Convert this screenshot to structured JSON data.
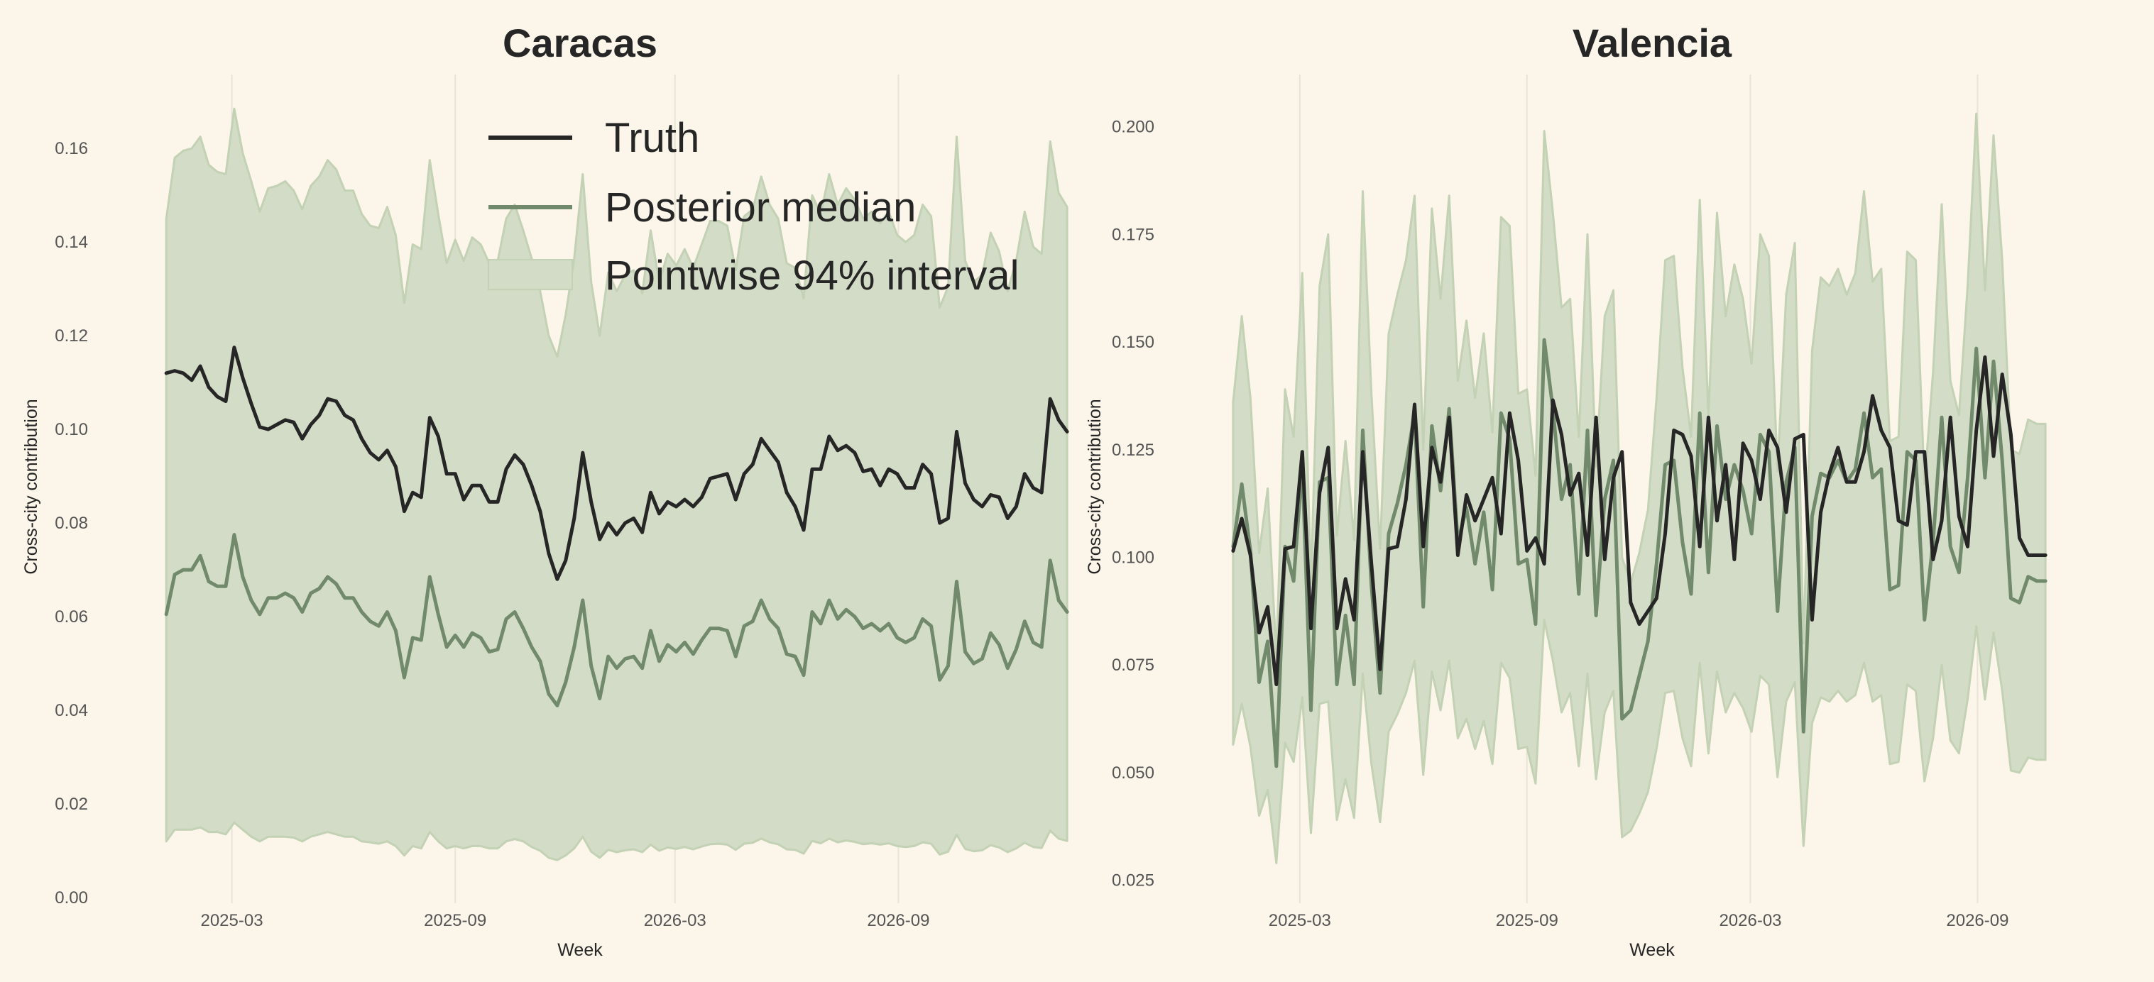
{
  "colors": {
    "background": "#fcf5ea",
    "truth": "#262626",
    "median": "#718a6b",
    "interval_fill": "#d3dcc6",
    "interval_edge": "#c3d1b4",
    "grid": "#e7e4d6"
  },
  "legend": {
    "placement": "upper-center of left panel",
    "items": [
      {
        "key": "truth",
        "label": "Truth",
        "kind": "line"
      },
      {
        "key": "median",
        "label": "Posterior median",
        "kind": "line"
      },
      {
        "key": "interval",
        "label": "Pointwise 94% interval",
        "kind": "patch"
      }
    ]
  },
  "chart_data": [
    {
      "type": "line",
      "title": "Caracas",
      "xlabel": "Week",
      "ylabel": "Cross-city contribution",
      "xlim": [
        "2024-12-10",
        "2026-12-15"
      ],
      "ylim": [
        0,
        0.172
      ],
      "yticks": [
        0.0,
        0.02,
        0.04,
        0.06,
        0.08,
        0.1,
        0.12,
        0.14,
        0.16
      ],
      "ytick_labels": [
        "0.00",
        "0.02",
        "0.04",
        "0.06",
        "0.08",
        "0.10",
        "0.12",
        "0.14",
        "0.16"
      ],
      "xticks": [
        "2025-03-01",
        "2025-09-01",
        "2026-03-01",
        "2026-09-01"
      ],
      "xtick_labels": [
        "2025-03",
        "2025-09",
        "2026-03",
        "2026-09"
      ],
      "grid": "vertical",
      "x_start": "2025-01-06",
      "x_step_days": 7,
      "series": [
        {
          "name": "Truth",
          "values": [
            0.112,
            0.1125,
            0.112,
            0.1105,
            0.1135,
            0.109,
            0.107,
            0.106,
            0.1175,
            0.111,
            0.1055,
            0.1005,
            0.1,
            0.101,
            0.102,
            0.1015,
            0.098,
            0.101,
            0.103,
            0.1065,
            0.106,
            0.103,
            0.102,
            0.098,
            0.095,
            0.0935,
            0.0955,
            0.092,
            0.0825,
            0.0865,
            0.0855,
            0.1025,
            0.0985,
            0.0905,
            0.0905,
            0.085,
            0.088,
            0.088,
            0.0845,
            0.0845,
            0.0915,
            0.0945,
            0.0925,
            0.088,
            0.0825,
            0.0735,
            0.068,
            0.072,
            0.081,
            0.095,
            0.0845,
            0.0765,
            0.08,
            0.0775,
            0.08,
            0.081,
            0.078,
            0.0865,
            0.082,
            0.0845,
            0.0835,
            0.085,
            0.0835,
            0.0855,
            0.0895,
            0.09,
            0.0905,
            0.085,
            0.0905,
            0.0925,
            0.098,
            0.0955,
            0.093,
            0.0865,
            0.0835,
            0.0785,
            0.0915,
            0.0915,
            0.0985,
            0.0955,
            0.0965,
            0.095,
            0.091,
            0.0915,
            0.088,
            0.0915,
            0.0905,
            0.0875,
            0.0875,
            0.0925,
            0.0905,
            0.08,
            0.081,
            0.0995,
            0.0885,
            0.085,
            0.0835,
            0.086,
            0.0855,
            0.081,
            0.0835,
            0.0905,
            0.0875,
            0.0865,
            0.1065,
            0.102,
            0.0995
          ]
        },
        {
          "name": "Posterior median",
          "values": [
            0.0605,
            0.069,
            0.07,
            0.07,
            0.073,
            0.0675,
            0.0665,
            0.0665,
            0.0775,
            0.0685,
            0.0635,
            0.0605,
            0.064,
            0.064,
            0.065,
            0.064,
            0.061,
            0.065,
            0.066,
            0.0685,
            0.067,
            0.064,
            0.064,
            0.061,
            0.059,
            0.058,
            0.061,
            0.057,
            0.047,
            0.0555,
            0.055,
            0.0685,
            0.0605,
            0.0535,
            0.056,
            0.0535,
            0.0565,
            0.0555,
            0.0525,
            0.053,
            0.0595,
            0.061,
            0.0575,
            0.0535,
            0.0505,
            0.0435,
            0.041,
            0.046,
            0.0535,
            0.0635,
            0.0495,
            0.0425,
            0.0515,
            0.049,
            0.051,
            0.0515,
            0.049,
            0.057,
            0.0505,
            0.054,
            0.0525,
            0.0545,
            0.052,
            0.055,
            0.0575,
            0.0575,
            0.057,
            0.0515,
            0.058,
            0.059,
            0.0635,
            0.0595,
            0.0575,
            0.052,
            0.0515,
            0.0475,
            0.061,
            0.0585,
            0.0635,
            0.0595,
            0.0615,
            0.06,
            0.0575,
            0.0585,
            0.057,
            0.0585,
            0.0555,
            0.0545,
            0.0555,
            0.0595,
            0.058,
            0.0465,
            0.0495,
            0.0675,
            0.0525,
            0.05,
            0.051,
            0.0565,
            0.054,
            0.049,
            0.053,
            0.059,
            0.0545,
            0.0535,
            0.072,
            0.0635,
            0.061
          ]
        }
      ],
      "interval": {
        "lower": [
          0.012,
          0.0145,
          0.0145,
          0.0145,
          0.015,
          0.014,
          0.014,
          0.0135,
          0.016,
          0.0145,
          0.013,
          0.012,
          0.013,
          0.013,
          0.013,
          0.0128,
          0.012,
          0.013,
          0.0135,
          0.014,
          0.0135,
          0.013,
          0.013,
          0.012,
          0.0118,
          0.0115,
          0.012,
          0.011,
          0.009,
          0.011,
          0.0105,
          0.014,
          0.012,
          0.0105,
          0.011,
          0.0105,
          0.011,
          0.011,
          0.0105,
          0.0105,
          0.012,
          0.0125,
          0.012,
          0.0108,
          0.01,
          0.0085,
          0.008,
          0.009,
          0.0105,
          0.013,
          0.0098,
          0.0085,
          0.0102,
          0.0097,
          0.0101,
          0.0103,
          0.0097,
          0.0113,
          0.01,
          0.0107,
          0.0104,
          0.0108,
          0.0103,
          0.0109,
          0.0114,
          0.0115,
          0.0113,
          0.0102,
          0.0115,
          0.0117,
          0.0126,
          0.0118,
          0.0114,
          0.0103,
          0.0102,
          0.0094,
          0.0121,
          0.0116,
          0.0126,
          0.0118,
          0.0122,
          0.0119,
          0.0114,
          0.0116,
          0.0113,
          0.0116,
          0.011,
          0.0108,
          0.011,
          0.0118,
          0.0115,
          0.0092,
          0.0098,
          0.0134,
          0.0104,
          0.0099,
          0.0101,
          0.0112,
          0.0107,
          0.0097,
          0.0105,
          0.0117,
          0.0108,
          0.0106,
          0.0143,
          0.0126,
          0.0121
        ],
        "upper": [
          0.145,
          0.158,
          0.1595,
          0.16,
          0.1625,
          0.1565,
          0.155,
          0.1545,
          0.1685,
          0.159,
          0.153,
          0.1465,
          0.1515,
          0.152,
          0.153,
          0.151,
          0.147,
          0.152,
          0.154,
          0.1575,
          0.1555,
          0.151,
          0.151,
          0.146,
          0.1435,
          0.143,
          0.1475,
          0.1415,
          0.127,
          0.1395,
          0.1385,
          0.1575,
          0.146,
          0.1355,
          0.1405,
          0.136,
          0.141,
          0.1395,
          0.1355,
          0.136,
          0.145,
          0.148,
          0.1425,
          0.1365,
          0.1295,
          0.12,
          0.1155,
          0.1245,
          0.1365,
          0.1545,
          0.1315,
          0.12,
          0.1335,
          0.1295,
          0.133,
          0.134,
          0.129,
          0.1425,
          0.1315,
          0.1375,
          0.135,
          0.1385,
          0.1345,
          0.1395,
          0.1445,
          0.1445,
          0.1435,
          0.134,
          0.1455,
          0.147,
          0.154,
          0.148,
          0.145,
          0.1355,
          0.1345,
          0.128,
          0.15,
          0.146,
          0.1545,
          0.148,
          0.1515,
          0.149,
          0.145,
          0.1465,
          0.144,
          0.1465,
          0.1415,
          0.14,
          0.1415,
          0.148,
          0.1455,
          0.126,
          0.1305,
          0.1625,
          0.136,
          0.1315,
          0.133,
          0.142,
          0.138,
          0.1295,
          0.136,
          0.1465,
          0.139,
          0.1375,
          0.1615,
          0.1505,
          0.1475
        ]
      }
    },
    {
      "type": "line",
      "title": "Valencia",
      "xlabel": "Week",
      "ylabel": "Cross-city contribution",
      "xlim": [
        "2024-12-10",
        "2026-12-15"
      ],
      "ylim": [
        0.021,
        0.208
      ],
      "yticks": [
        0.025,
        0.05,
        0.075,
        0.1,
        0.125,
        0.15,
        0.175,
        0.2
      ],
      "ytick_labels": [
        "0.025",
        "0.050",
        "0.075",
        "0.100",
        "0.125",
        "0.150",
        "0.175",
        "0.200"
      ],
      "xticks": [
        "2025-03-01",
        "2025-09-01",
        "2026-03-01",
        "2026-09-01"
      ],
      "xtick_labels": [
        "2025-03",
        "2025-09",
        "2026-03",
        "2026-09"
      ],
      "grid": "vertical",
      "x_start": "2025-01-06",
      "x_step_days": 7,
      "series": [
        {
          "name": "Truth",
          "values": [
            0.1015,
            0.109,
            0.1005,
            0.0825,
            0.0885,
            0.0705,
            0.102,
            0.1025,
            0.1245,
            0.0835,
            0.115,
            0.1255,
            0.0835,
            0.095,
            0.0855,
            0.1245,
            0.0985,
            0.074,
            0.102,
            0.1025,
            0.1135,
            0.1355,
            0.1025,
            0.1255,
            0.1175,
            0.1325,
            0.1005,
            0.1145,
            0.1085,
            0.1135,
            0.1185,
            0.1055,
            0.1335,
            0.1225,
            0.1015,
            0.1045,
            0.0985,
            0.1365,
            0.1285,
            0.1145,
            0.1195,
            0.1005,
            0.1325,
            0.0995,
            0.1185,
            0.1245,
            0.0895,
            0.0845,
            0.0875,
            0.0905,
            0.1055,
            0.1295,
            0.1285,
            0.1235,
            0.1025,
            0.1325,
            0.1085,
            0.1215,
            0.0995,
            0.1265,
            0.1225,
            0.1135,
            0.1295,
            0.1255,
            0.1105,
            0.1275,
            0.1285,
            0.0855,
            0.1105,
            0.1195,
            0.1255,
            0.1175,
            0.1175,
            0.1245,
            0.1375,
            0.1295,
            0.1255,
            0.1085,
            0.1075,
            0.1245,
            0.1245,
            0.0995,
            0.1085,
            0.1325,
            0.1095,
            0.1025,
            0.1295,
            0.1465,
            0.1235,
            0.1425,
            0.1285,
            0.1045,
            0.1005,
            0.1005,
            0.1005
          ]
        },
        {
          "name": "Posterior median",
          "values": [
            0.1025,
            0.117,
            0.1015,
            0.071,
            0.0805,
            0.0515,
            0.1025,
            0.0945,
            0.1215,
            0.0645,
            0.1175,
            0.1185,
            0.0705,
            0.0865,
            0.0705,
            0.1295,
            0.0935,
            0.0685,
            0.1055,
            0.1125,
            0.1215,
            0.1335,
            0.0885,
            0.1305,
            0.1155,
            0.1345,
            0.1035,
            0.1115,
            0.0985,
            0.1105,
            0.0925,
            0.1335,
            0.1275,
            0.0985,
            0.0995,
            0.0845,
            0.1505,
            0.1345,
            0.1135,
            0.1215,
            0.0915,
            0.1295,
            0.0865,
            0.1135,
            0.1225,
            0.0625,
            0.0645,
            0.0725,
            0.0805,
            0.0985,
            0.1215,
            0.1225,
            0.1035,
            0.0915,
            0.1335,
            0.0965,
            0.1305,
            0.1135,
            0.1215,
            0.1155,
            0.1055,
            0.1285,
            0.1245,
            0.0875,
            0.1175,
            0.1255,
            0.0595,
            0.1095,
            0.1195,
            0.1185,
            0.1225,
            0.1175,
            0.1205,
            0.1335,
            0.1185,
            0.1205,
            0.0925,
            0.0935,
            0.1245,
            0.1225,
            0.0855,
            0.1035,
            0.1325,
            0.1025,
            0.0965,
            0.1185,
            0.1485,
            0.1185,
            0.1455,
            0.1225,
            0.0905,
            0.0895,
            0.0955,
            0.0945,
            0.0945
          ]
        }
      ],
      "interval": {
        "lower": [
          0.0565,
          0.066,
          0.056,
          0.04,
          0.046,
          0.029,
          0.057,
          0.0525,
          0.0675,
          0.036,
          0.066,
          0.0665,
          0.039,
          0.0485,
          0.0395,
          0.073,
          0.052,
          0.0385,
          0.0595,
          0.0635,
          0.0685,
          0.076,
          0.0495,
          0.0735,
          0.0645,
          0.076,
          0.058,
          0.0625,
          0.0555,
          0.062,
          0.052,
          0.0755,
          0.072,
          0.0555,
          0.056,
          0.0475,
          0.0855,
          0.076,
          0.064,
          0.0685,
          0.0515,
          0.073,
          0.0485,
          0.064,
          0.069,
          0.035,
          0.0365,
          0.0405,
          0.0455,
          0.0555,
          0.0685,
          0.069,
          0.058,
          0.0515,
          0.0755,
          0.0545,
          0.0735,
          0.064,
          0.0685,
          0.065,
          0.0595,
          0.0725,
          0.0705,
          0.049,
          0.0665,
          0.071,
          0.033,
          0.0615,
          0.0675,
          0.0665,
          0.069,
          0.0665,
          0.068,
          0.0755,
          0.0665,
          0.068,
          0.052,
          0.0525,
          0.0705,
          0.069,
          0.048,
          0.058,
          0.075,
          0.0575,
          0.0545,
          0.067,
          0.084,
          0.067,
          0.0825,
          0.069,
          0.0505,
          0.05,
          0.0535,
          0.053,
          0.053
        ],
        "upper": [
          0.136,
          0.156,
          0.137,
          0.101,
          0.116,
          0.077,
          0.139,
          0.128,
          0.166,
          0.094,
          0.163,
          0.175,
          0.105,
          0.127,
          0.104,
          0.185,
          0.138,
          0.102,
          0.152,
          0.161,
          0.169,
          0.184,
          0.125,
          0.181,
          0.16,
          0.184,
          0.141,
          0.155,
          0.137,
          0.152,
          0.129,
          0.179,
          0.177,
          0.138,
          0.139,
          0.119,
          0.199,
          0.18,
          0.158,
          0.16,
          0.128,
          0.175,
          0.121,
          0.156,
          0.162,
          0.1,
          0.094,
          0.101,
          0.111,
          0.137,
          0.169,
          0.17,
          0.144,
          0.128,
          0.183,
          0.133,
          0.18,
          0.156,
          0.168,
          0.16,
          0.145,
          0.175,
          0.17,
          0.12,
          0.161,
          0.173,
          0.08,
          0.148,
          0.165,
          0.163,
          0.167,
          0.161,
          0.166,
          0.185,
          0.164,
          0.167,
          0.127,
          0.128,
          0.171,
          0.169,
          0.117,
          0.143,
          0.182,
          0.141,
          0.133,
          0.163,
          0.203,
          0.162,
          0.198,
          0.169,
          0.125,
          0.124,
          0.132,
          0.131,
          0.131
        ]
      }
    }
  ]
}
